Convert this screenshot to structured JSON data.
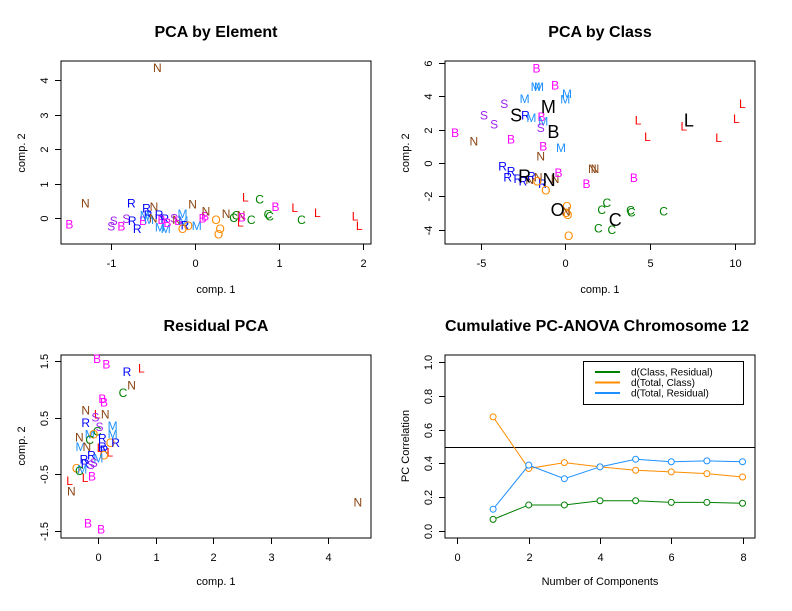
{
  "colors": {
    "B": "#ff00ff",
    "S": "#a020f0",
    "R": "#0000ff",
    "M": "#1e90ff",
    "N": "#8b4513",
    "O": "#ff8c00",
    "C": "#008000",
    "L": "#ff0000",
    "centroid": "#000000"
  },
  "chart_data": [
    {
      "id": "pca-element",
      "type": "scatter",
      "title": "PCA by Element",
      "xlabel": "comp. 1",
      "ylabel": "comp. 2",
      "xlim": [
        -1.6,
        2.1
      ],
      "ylim": [
        -0.75,
        4.55
      ],
      "xticks": [
        -1,
        0,
        1,
        2
      ],
      "yticks": [
        0,
        1,
        2,
        3,
        4
      ],
      "points": [
        {
          "label": "N",
          "x": -0.45,
          "y": 4.38
        },
        {
          "label": "B",
          "x": -1.5,
          "y": -0.15
        },
        {
          "label": "N",
          "x": -1.31,
          "y": 0.45
        },
        {
          "label": "S",
          "x": -0.97,
          "y": -0.05
        },
        {
          "label": "S",
          "x": -1.0,
          "y": -0.22
        },
        {
          "label": "B",
          "x": -0.88,
          "y": -0.22
        },
        {
          "label": "S",
          "x": -0.82,
          "y": 0.0
        },
        {
          "label": "R",
          "x": -0.76,
          "y": 0.45
        },
        {
          "label": "R",
          "x": -0.75,
          "y": -0.05
        },
        {
          "label": "R",
          "x": -0.69,
          "y": -0.28
        },
        {
          "label": "B",
          "x": -0.62,
          "y": -0.05
        },
        {
          "label": "M",
          "x": -0.6,
          "y": 0.1
        },
        {
          "label": "R",
          "x": -0.58,
          "y": 0.3
        },
        {
          "label": "R",
          "x": -0.56,
          "y": 0.12
        },
        {
          "label": "M",
          "x": -0.55,
          "y": -0.02
        },
        {
          "label": "N",
          "x": -0.49,
          "y": 0.35
        },
        {
          "label": "N",
          "x": -0.5,
          "y": 0.02
        },
        {
          "label": "R",
          "x": -0.43,
          "y": 0.12
        },
        {
          "label": "M",
          "x": -0.42,
          "y": -0.25
        },
        {
          "label": "B",
          "x": -0.4,
          "y": -0.02
        },
        {
          "label": "R",
          "x": -0.36,
          "y": 0.0
        },
        {
          "label": "M",
          "x": -0.35,
          "y": -0.28
        },
        {
          "label": "B",
          "x": -0.33,
          "y": -0.12
        },
        {
          "label": "S",
          "x": -0.25,
          "y": 0.02
        },
        {
          "label": "N",
          "x": -0.22,
          "y": -0.03
        },
        {
          "label": "B",
          "x": -0.2,
          "y": -0.05
        },
        {
          "label": "M",
          "x": -0.15,
          "y": 0.15
        },
        {
          "label": "M",
          "x": -0.14,
          "y": -0.05
        },
        {
          "label": "R",
          "x": -0.12,
          "y": -0.18
        },
        {
          "label": "O",
          "x": -0.15,
          "y": -0.28
        },
        {
          "label": "O",
          "x": -0.08,
          "y": -0.2
        },
        {
          "label": "N",
          "x": -0.03,
          "y": 0.42
        },
        {
          "label": "M",
          "x": 0.02,
          "y": -0.2
        },
        {
          "label": "B",
          "x": 0.09,
          "y": 0.02
        },
        {
          "label": "B",
          "x": 0.12,
          "y": 0.08
        },
        {
          "label": "N",
          "x": 0.13,
          "y": 0.22
        },
        {
          "label": "O",
          "x": 0.25,
          "y": -0.02
        },
        {
          "label": "O",
          "x": 0.3,
          "y": -0.28
        },
        {
          "label": "O",
          "x": 0.28,
          "y": -0.45
        },
        {
          "label": "N",
          "x": 0.37,
          "y": 0.15
        },
        {
          "label": "C",
          "x": 0.46,
          "y": 0.03
        },
        {
          "label": "C",
          "x": 0.49,
          "y": 0.1
        },
        {
          "label": "N",
          "x": 0.55,
          "y": 0.1
        },
        {
          "label": "B",
          "x": 0.56,
          "y": 0.05
        },
        {
          "label": "L",
          "x": 0.54,
          "y": -0.1
        },
        {
          "label": "L",
          "x": 0.6,
          "y": 0.62
        },
        {
          "label": "C",
          "x": 0.67,
          "y": -0.02
        },
        {
          "label": "C",
          "x": 0.77,
          "y": 0.57
        },
        {
          "label": "C",
          "x": 0.87,
          "y": 0.14
        },
        {
          "label": "C",
          "x": 0.89,
          "y": 0.08
        },
        {
          "label": "B",
          "x": 0.96,
          "y": 0.35
        },
        {
          "label": "L",
          "x": 1.19,
          "y": 0.32
        },
        {
          "label": "C",
          "x": 1.27,
          "y": -0.03
        },
        {
          "label": "L",
          "x": 1.46,
          "y": 0.17
        },
        {
          "label": "L",
          "x": 1.91,
          "y": 0.08
        },
        {
          "label": "L",
          "x": 1.96,
          "y": -0.2
        }
      ]
    },
    {
      "id": "pca-class",
      "type": "scatter",
      "title": "PCA by Class",
      "xlabel": "comp. 1",
      "ylabel": "comp. 2",
      "xlim": [
        -7.1,
        11.2
      ],
      "ylim": [
        -4.85,
        6.1
      ],
      "xticks": [
        -5,
        0,
        5,
        10
      ],
      "yticks": [
        -4,
        -2,
        0,
        2,
        4,
        6
      ],
      "points": [
        {
          "label": "B",
          "x": -1.7,
          "y": 5.7
        },
        {
          "label": "M",
          "x": -1.75,
          "y": 4.6
        },
        {
          "label": "M",
          "x": -1.55,
          "y": 4.6
        },
        {
          "label": "B",
          "x": -0.6,
          "y": 4.7
        },
        {
          "label": "M",
          "x": 0.1,
          "y": 4.2
        },
        {
          "label": "M",
          "x": 0.0,
          "y": 3.85
        },
        {
          "label": "M",
          "x": -2.4,
          "y": 3.9
        },
        {
          "label": "S",
          "x": -3.6,
          "y": 3.6
        },
        {
          "label": "S",
          "x": -4.8,
          "y": 2.9
        },
        {
          "label": "S",
          "x": -4.2,
          "y": 2.35
        },
        {
          "label": "R",
          "x": -2.35,
          "y": 2.9
        },
        {
          "label": "M",
          "x": -2.0,
          "y": 2.75
        },
        {
          "label": "B",
          "x": -1.4,
          "y": 2.8
        },
        {
          "label": "M",
          "x": -1.3,
          "y": 2.55
        },
        {
          "label": "S",
          "x": -1.45,
          "y": 2.15
        },
        {
          "label": "B",
          "x": -6.5,
          "y": 1.85
        },
        {
          "label": "N",
          "x": -5.4,
          "y": 1.35
        },
        {
          "label": "B",
          "x": -3.2,
          "y": 1.45
        },
        {
          "label": "B",
          "x": -1.3,
          "y": 1.05
        },
        {
          "label": "M",
          "x": -0.25,
          "y": 0.95
        },
        {
          "label": "N",
          "x": -1.45,
          "y": 0.45
        },
        {
          "label": "R",
          "x": -3.7,
          "y": -0.15
        },
        {
          "label": "R",
          "x": -3.2,
          "y": -0.45
        },
        {
          "label": "R",
          "x": -3.4,
          "y": -0.8
        },
        {
          "label": "R",
          "x": -2.8,
          "y": -0.9
        },
        {
          "label": "R",
          "x": -2.5,
          "y": -1.05
        },
        {
          "label": "N",
          "x": -2.1,
          "y": -0.95
        },
        {
          "label": "R",
          "x": -2.0,
          "y": -0.75
        },
        {
          "label": "N",
          "x": -1.6,
          "y": -0.8
        },
        {
          "label": "R",
          "x": -1.35,
          "y": -1.2
        },
        {
          "label": "N",
          "x": -0.6,
          "y": -0.9
        },
        {
          "label": "O",
          "x": -1.65,
          "y": -1.05
        },
        {
          "label": "O",
          "x": -1.15,
          "y": -1.6
        },
        {
          "label": "B",
          "x": -0.4,
          "y": -0.55
        },
        {
          "label": "N",
          "x": 1.6,
          "y": -0.3
        },
        {
          "label": "N",
          "x": 1.75,
          "y": -0.3
        },
        {
          "label": "B",
          "x": 1.25,
          "y": -1.2
        },
        {
          "label": "B",
          "x": 4.05,
          "y": -0.85
        },
        {
          "label": "O",
          "x": 0.1,
          "y": -2.55
        },
        {
          "label": "O",
          "x": 0.05,
          "y": -2.95
        },
        {
          "label": "O",
          "x": 0.15,
          "y": -3.05
        },
        {
          "label": "N",
          "x": 0.05,
          "y": -2.85
        },
        {
          "label": "O",
          "x": 0.2,
          "y": -4.3
        },
        {
          "label": "C",
          "x": 2.45,
          "y": -2.35
        },
        {
          "label": "C",
          "x": 2.15,
          "y": -2.75
        },
        {
          "label": "C",
          "x": 3.85,
          "y": -2.8
        },
        {
          "label": "C",
          "x": 3.9,
          "y": -2.9
        },
        {
          "label": "C",
          "x": 5.8,
          "y": -2.85
        },
        {
          "label": "C",
          "x": 1.95,
          "y": -3.85
        },
        {
          "label": "C",
          "x": 2.75,
          "y": -3.95
        },
        {
          "label": "L",
          "x": 4.3,
          "y": 2.6
        },
        {
          "label": "L",
          "x": 4.85,
          "y": 1.6
        },
        {
          "label": "L",
          "x": 7.0,
          "y": 2.25
        },
        {
          "label": "L",
          "x": 9.05,
          "y": 1.55
        },
        {
          "label": "L",
          "x": 10.1,
          "y": 2.7
        },
        {
          "label": "L",
          "x": 10.45,
          "y": 3.6
        }
      ],
      "centroids": [
        {
          "label": "M",
          "x": -1.0,
          "y": 3.4
        },
        {
          "label": "S",
          "x": -2.9,
          "y": 2.9
        },
        {
          "label": "B",
          "x": -0.7,
          "y": 1.9
        },
        {
          "label": "L",
          "x": 7.3,
          "y": 2.6
        },
        {
          "label": "R",
          "x": -2.4,
          "y": -0.75
        },
        {
          "label": "N",
          "x": -0.95,
          "y": -0.95
        },
        {
          "label": "O",
          "x": -0.45,
          "y": -2.75
        },
        {
          "label": "C",
          "x": 2.95,
          "y": -3.35
        }
      ]
    },
    {
      "id": "residual-pca",
      "type": "scatter",
      "title": "Residual PCA",
      "xlabel": "comp. 1",
      "ylabel": "comp. 2",
      "xlim": [
        -0.65,
        4.75
      ],
      "ylim": [
        -1.62,
        1.6
      ],
      "xticks": [
        0,
        1,
        2,
        3,
        4
      ],
      "yticks": [
        -1.5,
        -0.5,
        0.5,
        1.5
      ],
      "points": [
        {
          "label": "B",
          "x": -0.02,
          "y": 1.55
        },
        {
          "label": "B",
          "x": 0.14,
          "y": 1.45
        },
        {
          "label": "R",
          "x": 0.5,
          "y": 1.32
        },
        {
          "label": "L",
          "x": 0.75,
          "y": 1.38
        },
        {
          "label": "N",
          "x": 0.58,
          "y": 1.08
        },
        {
          "label": "C",
          "x": 0.43,
          "y": 0.95
        },
        {
          "label": "B",
          "x": 0.07,
          "y": 0.84
        },
        {
          "label": "B",
          "x": 0.1,
          "y": 0.78
        },
        {
          "label": "N",
          "x": -0.22,
          "y": 0.64
        },
        {
          "label": "L",
          "x": -0.02,
          "y": 0.57
        },
        {
          "label": "N",
          "x": 0.12,
          "y": 0.57
        },
        {
          "label": "S",
          "x": -0.05,
          "y": 0.52
        },
        {
          "label": "R",
          "x": -0.22,
          "y": 0.42
        },
        {
          "label": "M",
          "x": 0.25,
          "y": 0.37
        },
        {
          "label": "S",
          "x": 0.02,
          "y": 0.35
        },
        {
          "label": "C",
          "x": -0.02,
          "y": 0.27
        },
        {
          "label": "M",
          "x": -0.15,
          "y": 0.22
        },
        {
          "label": "O",
          "x": -0.08,
          "y": 0.22
        },
        {
          "label": "M",
          "x": 0.25,
          "y": 0.22
        },
        {
          "label": "N",
          "x": -0.33,
          "y": 0.17
        },
        {
          "label": "C",
          "x": -0.15,
          "y": 0.12
        },
        {
          "label": "R",
          "x": 0.07,
          "y": 0.15
        },
        {
          "label": "O",
          "x": 0.21,
          "y": 0.07
        },
        {
          "label": "R",
          "x": 0.3,
          "y": 0.07
        },
        {
          "label": "M",
          "x": -0.31,
          "y": 0.0
        },
        {
          "label": "N",
          "x": -0.2,
          "y": 0.0
        },
        {
          "label": "R",
          "x": 0.07,
          "y": 0.0
        },
        {
          "label": "L",
          "x": 0.03,
          "y": -0.02
        },
        {
          "label": "R",
          "x": 0.1,
          "y": -0.05
        },
        {
          "label": "L",
          "x": 0.2,
          "y": -0.1
        },
        {
          "label": "O",
          "x": 0.1,
          "y": -0.15
        },
        {
          "label": "R",
          "x": -0.12,
          "y": -0.15
        },
        {
          "label": "M",
          "x": 0.0,
          "y": -0.2
        },
        {
          "label": "R",
          "x": -0.25,
          "y": -0.22
        },
        {
          "label": "S",
          "x": -0.08,
          "y": -0.28
        },
        {
          "label": "S",
          "x": -0.13,
          "y": -0.32
        },
        {
          "label": "R",
          "x": -0.23,
          "y": -0.3
        },
        {
          "label": "O",
          "x": -0.38,
          "y": -0.38
        },
        {
          "label": "M",
          "x": -0.28,
          "y": -0.4
        },
        {
          "label": "C",
          "x": -0.33,
          "y": -0.42
        },
        {
          "label": "B",
          "x": -0.11,
          "y": -0.52
        },
        {
          "label": "L",
          "x": -0.23,
          "y": -0.55
        },
        {
          "label": "L",
          "x": -0.5,
          "y": -0.6
        },
        {
          "label": "N",
          "x": -0.47,
          "y": -0.78
        },
        {
          "label": "B",
          "x": -0.18,
          "y": -1.35
        },
        {
          "label": "B",
          "x": 0.05,
          "y": -1.45
        },
        {
          "label": "N",
          "x": 4.52,
          "y": -0.98
        }
      ]
    },
    {
      "id": "cumulative-pc-anova",
      "type": "line",
      "title": "Cumulative PC-ANOVA Chromosome 12",
      "xlabel": "Number of Components",
      "ylabel": "PC Correlation",
      "xlim": [
        -0.35,
        8.35
      ],
      "ylim": [
        -0.04,
        1.04
      ],
      "xticks": [
        0,
        2,
        4,
        6,
        8
      ],
      "yticks": [
        0.0,
        0.2,
        0.4,
        0.6,
        0.8,
        1.0
      ],
      "hline": 0.5,
      "legend_position": "top-right",
      "x": [
        1,
        2,
        3,
        4,
        5,
        6,
        7,
        8
      ],
      "series": [
        {
          "name": "d(Class, Residual)",
          "color": "#008000",
          "values": [
            0.07,
            0.155,
            0.155,
            0.18,
            0.18,
            0.17,
            0.17,
            0.165
          ]
        },
        {
          "name": "d(Total, Class)",
          "color": "#ff8c00",
          "values": [
            0.675,
            0.37,
            0.405,
            0.38,
            0.36,
            0.35,
            0.34,
            0.32
          ]
        },
        {
          "name": "d(Total, Residual)",
          "color": "#1e90ff",
          "values": [
            0.13,
            0.39,
            0.31,
            0.38,
            0.425,
            0.41,
            0.415,
            0.41
          ]
        }
      ]
    }
  ]
}
